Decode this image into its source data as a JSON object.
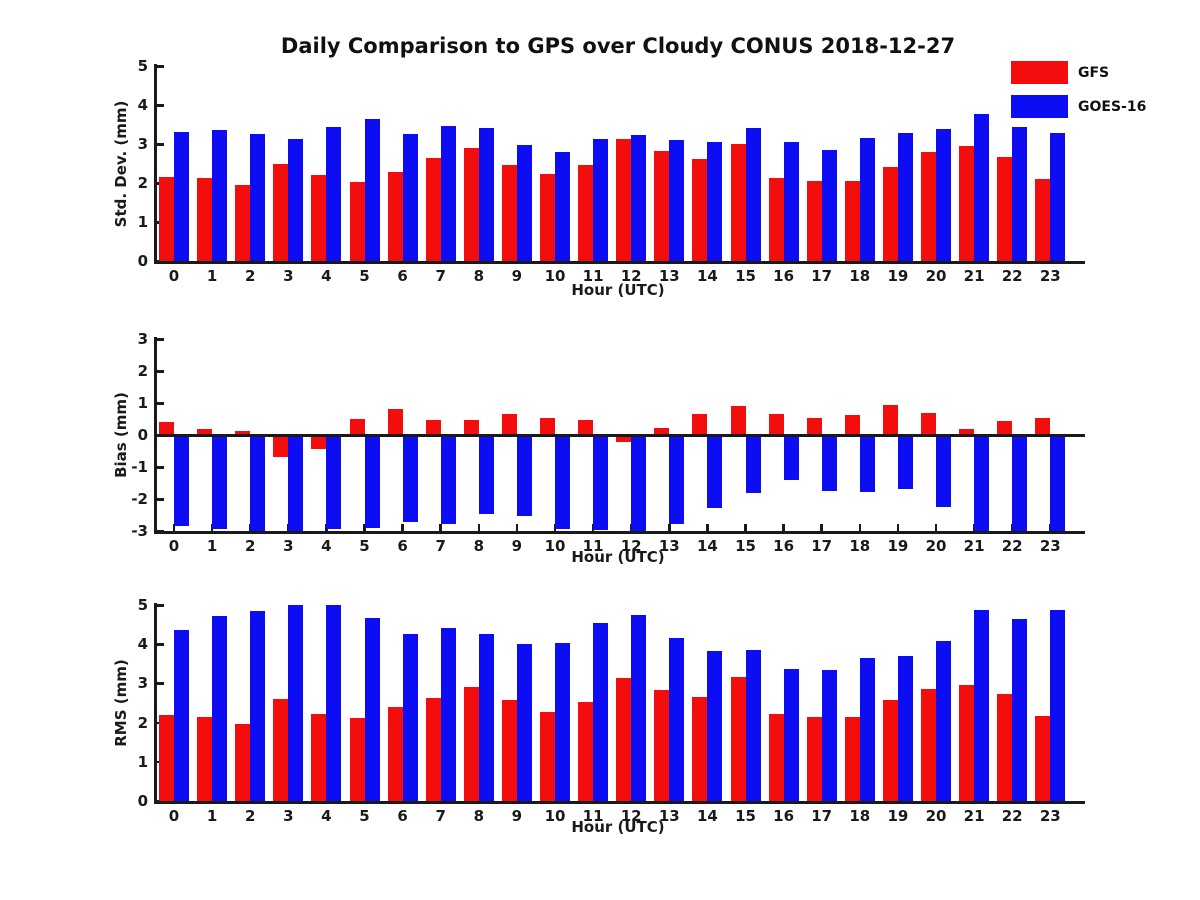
{
  "title": "Daily Comparison to GPS over Cloudy CONUS 2018-12-27",
  "legend": {
    "items": [
      {
        "label": "GFS",
        "color": "#f40d0d"
      },
      {
        "label": "GOES-16",
        "color": "#0d0df4"
      }
    ]
  },
  "chart_data": [
    {
      "type": "bar",
      "ylabel": "Std. Dev. (mm)",
      "xlabel": "Hour (UTC)",
      "ylim": [
        0,
        5
      ],
      "yticks": [
        0,
        1,
        2,
        3,
        4,
        5
      ],
      "grid": false,
      "legend_position": "top-right",
      "categories": [
        "0",
        "1",
        "2",
        "3",
        "4",
        "5",
        "6",
        "7",
        "8",
        "9",
        "10",
        "11",
        "12",
        "13",
        "14",
        "15",
        "16",
        "17",
        "18",
        "19",
        "20",
        "21",
        "22",
        "23"
      ],
      "series": [
        {
          "name": "GFS",
          "color": "#f40d0d",
          "values": [
            2.15,
            2.12,
            1.95,
            2.5,
            2.2,
            2.03,
            2.27,
            2.63,
            2.89,
            2.46,
            2.22,
            2.47,
            3.12,
            2.82,
            2.61,
            3.0,
            2.13,
            2.06,
            2.04,
            2.4,
            2.79,
            2.96,
            2.67,
            2.09
          ]
        },
        {
          "name": "GOES-16",
          "color": "#0d0df4",
          "values": [
            3.3,
            3.37,
            3.25,
            3.12,
            3.43,
            3.65,
            3.25,
            3.46,
            3.4,
            2.98,
            2.79,
            3.14,
            3.22,
            3.1,
            3.06,
            3.4,
            3.04,
            2.84,
            3.16,
            3.29,
            3.39,
            3.76,
            3.44,
            3.28
          ]
        }
      ]
    },
    {
      "type": "bar",
      "ylabel": "Bias (mm)",
      "xlabel": "Hour (UTC)",
      "ylim": [
        -3,
        3
      ],
      "yticks": [
        -3,
        -2,
        -1,
        0,
        1,
        2,
        3
      ],
      "grid": false,
      "zero_line": true,
      "categories": [
        "0",
        "1",
        "2",
        "3",
        "4",
        "5",
        "6",
        "7",
        "8",
        "9",
        "10",
        "11",
        "12",
        "13",
        "14",
        "15",
        "16",
        "17",
        "18",
        "19",
        "20",
        "21",
        "22",
        "23"
      ],
      "series": [
        {
          "name": "GFS",
          "color": "#f40d0d",
          "values": [
            0.42,
            0.18,
            0.12,
            -0.7,
            -0.45,
            0.5,
            0.82,
            0.46,
            0.48,
            0.65,
            0.53,
            0.46,
            -0.23,
            0.21,
            0.67,
            0.92,
            0.66,
            0.54,
            0.61,
            0.93,
            0.68,
            0.2,
            0.45,
            0.54
          ]
        },
        {
          "name": "GOES-16",
          "color": "#0d0df4",
          "values": [
            -2.85,
            -2.94,
            -3.0,
            -3.0,
            -2.95,
            -2.9,
            -2.72,
            -2.79,
            -2.48,
            -2.53,
            -2.93,
            -2.98,
            -3.0,
            -2.77,
            -2.27,
            -1.82,
            -1.4,
            -1.74,
            -1.77,
            -1.7,
            -2.25,
            -3.0,
            -3.0,
            -3.0
          ]
        }
      ]
    },
    {
      "type": "bar",
      "ylabel": "RMS (mm)",
      "xlabel": "Hour (UTC)",
      "ylim": [
        0,
        5
      ],
      "yticks": [
        0,
        1,
        2,
        3,
        4,
        5
      ],
      "grid": false,
      "categories": [
        "0",
        "1",
        "2",
        "3",
        "4",
        "5",
        "6",
        "7",
        "8",
        "9",
        "10",
        "11",
        "12",
        "13",
        "14",
        "15",
        "16",
        "17",
        "18",
        "19",
        "20",
        "21",
        "22",
        "23"
      ],
      "series": [
        {
          "name": "GFS",
          "color": "#f40d0d",
          "values": [
            2.19,
            2.14,
            1.97,
            2.6,
            2.23,
            2.12,
            2.4,
            2.64,
            2.91,
            2.57,
            2.27,
            2.53,
            3.13,
            2.84,
            2.66,
            3.16,
            2.22,
            2.14,
            2.15,
            2.57,
            2.86,
            2.96,
            2.73,
            2.16
          ]
        },
        {
          "name": "GOES-16",
          "color": "#0d0df4",
          "values": [
            4.37,
            4.71,
            4.85,
            5.0,
            5.0,
            4.68,
            4.27,
            4.42,
            4.27,
            4.0,
            4.02,
            4.54,
            4.75,
            4.16,
            3.82,
            3.85,
            3.36,
            3.34,
            3.65,
            3.71,
            4.08,
            4.88,
            4.65,
            4.87
          ]
        }
      ]
    }
  ]
}
